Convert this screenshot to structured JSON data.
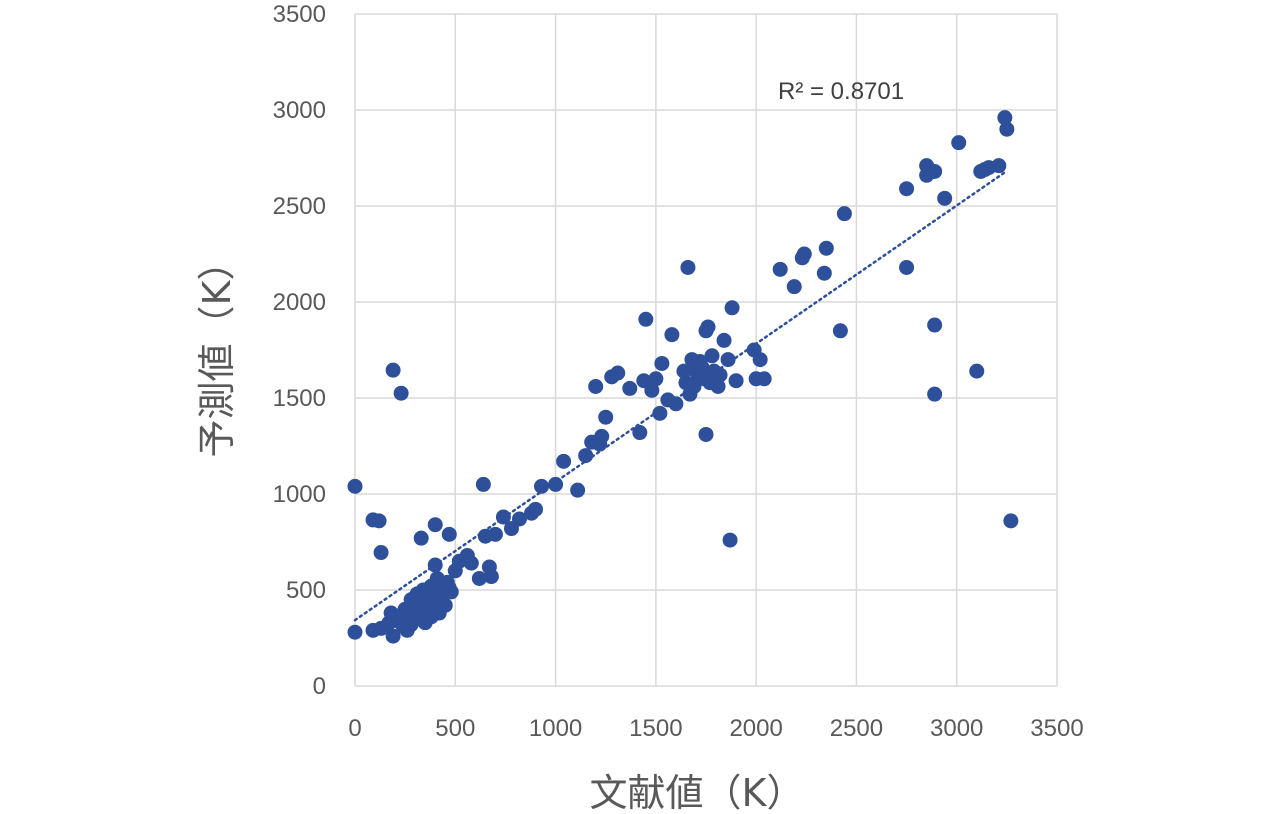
{
  "chart_data": {
    "type": "scatter",
    "xlabel": "文献値（K）",
    "ylabel": "予測値（K）",
    "xlim": [
      0,
      3500
    ],
    "ylim": [
      0,
      3500
    ],
    "xticks": [
      0,
      500,
      1000,
      1500,
      2000,
      2500,
      3000,
      3500
    ],
    "yticks": [
      0,
      500,
      1000,
      1500,
      2000,
      2500,
      3000,
      3500
    ],
    "grid": true,
    "marker_color": "#2e509b",
    "trendline": {
      "style": "dotted",
      "color": "#2e509b",
      "x_range": [
        0,
        3250
      ],
      "annotation": "R² = 0.8701"
    },
    "series": [
      {
        "points": [
          [
            0,
            1040
          ],
          [
            0,
            280
          ],
          [
            90,
            865
          ],
          [
            120,
            860
          ],
          [
            130,
            695
          ],
          [
            190,
            1645
          ],
          [
            230,
            1525
          ],
          [
            90,
            290
          ],
          [
            130,
            300
          ],
          [
            170,
            330
          ],
          [
            180,
            380
          ],
          [
            190,
            260
          ],
          [
            210,
            340
          ],
          [
            230,
            370
          ],
          [
            240,
            310
          ],
          [
            250,
            400
          ],
          [
            260,
            330
          ],
          [
            270,
            380
          ],
          [
            280,
            450
          ],
          [
            290,
            420
          ],
          [
            300,
            360
          ],
          [
            310,
            480
          ],
          [
            320,
            400
          ],
          [
            330,
            440
          ],
          [
            340,
            500
          ],
          [
            350,
            430
          ],
          [
            360,
            390
          ],
          [
            370,
            470
          ],
          [
            380,
            520
          ],
          [
            390,
            410
          ],
          [
            400,
            460
          ],
          [
            410,
            560
          ],
          [
            420,
            500
          ],
          [
            430,
            450
          ],
          [
            440,
            480
          ],
          [
            450,
            420
          ],
          [
            460,
            540
          ],
          [
            470,
            510
          ],
          [
            480,
            490
          ],
          [
            400,
            630
          ],
          [
            330,
            770
          ],
          [
            400,
            840
          ],
          [
            470,
            790
          ],
          [
            310,
            350
          ],
          [
            350,
            330
          ],
          [
            380,
            360
          ],
          [
            420,
            380
          ],
          [
            280,
            320
          ],
          [
            260,
            290
          ],
          [
            500,
            600
          ],
          [
            520,
            650
          ],
          [
            560,
            680
          ],
          [
            580,
            640
          ],
          [
            620,
            560
          ],
          [
            640,
            1050
          ],
          [
            650,
            780
          ],
          [
            670,
            620
          ],
          [
            680,
            570
          ],
          [
            700,
            790
          ],
          [
            740,
            880
          ],
          [
            780,
            820
          ],
          [
            820,
            870
          ],
          [
            880,
            900
          ],
          [
            900,
            920
          ],
          [
            930,
            1040
          ],
          [
            1000,
            1050
          ],
          [
            1040,
            1170
          ],
          [
            1110,
            1020
          ],
          [
            1150,
            1200
          ],
          [
            1180,
            1270
          ],
          [
            1200,
            1560
          ],
          [
            1220,
            1260
          ],
          [
            1230,
            1300
          ],
          [
            1250,
            1400
          ],
          [
            1280,
            1610
          ],
          [
            1310,
            1630
          ],
          [
            1370,
            1550
          ],
          [
            1420,
            1320
          ],
          [
            1440,
            1590
          ],
          [
            1450,
            1910
          ],
          [
            1480,
            1540
          ],
          [
            1500,
            1600
          ],
          [
            1520,
            1420
          ],
          [
            1530,
            1680
          ],
          [
            1560,
            1490
          ],
          [
            1580,
            1830
          ],
          [
            1600,
            1470
          ],
          [
            1640,
            1640
          ],
          [
            1650,
            1580
          ],
          [
            1660,
            2180
          ],
          [
            1670,
            1520
          ],
          [
            1680,
            1700
          ],
          [
            1690,
            1560
          ],
          [
            1700,
            1640
          ],
          [
            1710,
            1620
          ],
          [
            1720,
            1690
          ],
          [
            1730,
            1660
          ],
          [
            1740,
            1600
          ],
          [
            1750,
            1850
          ],
          [
            1760,
            1870
          ],
          [
            1770,
            1580
          ],
          [
            1780,
            1720
          ],
          [
            1790,
            1640
          ],
          [
            1800,
            1600
          ],
          [
            1810,
            1560
          ],
          [
            1820,
            1620
          ],
          [
            1840,
            1800
          ],
          [
            1860,
            1700
          ],
          [
            1870,
            760
          ],
          [
            1880,
            1970
          ],
          [
            1900,
            1590
          ],
          [
            1750,
            1310
          ],
          [
            1990,
            1750
          ],
          [
            2000,
            1600
          ],
          [
            2020,
            1700
          ],
          [
            2040,
            1600
          ],
          [
            2120,
            2170
          ],
          [
            2190,
            2080
          ],
          [
            2230,
            2230
          ],
          [
            2240,
            2250
          ],
          [
            2340,
            2150
          ],
          [
            2350,
            2280
          ],
          [
            2420,
            1850
          ],
          [
            2440,
            2460
          ],
          [
            2750,
            2590
          ],
          [
            2750,
            2180
          ],
          [
            2850,
            2710
          ],
          [
            2850,
            2660
          ],
          [
            2870,
            2680
          ],
          [
            2890,
            2680
          ],
          [
            2890,
            1880
          ],
          [
            2890,
            1520
          ],
          [
            2940,
            2540
          ],
          [
            3010,
            2830
          ],
          [
            3100,
            1640
          ],
          [
            3120,
            2680
          ],
          [
            3140,
            2690
          ],
          [
            3160,
            2700
          ],
          [
            3210,
            2710
          ],
          [
            3240,
            2960
          ],
          [
            3250,
            2900
          ],
          [
            3270,
            860
          ]
        ]
      }
    ]
  }
}
